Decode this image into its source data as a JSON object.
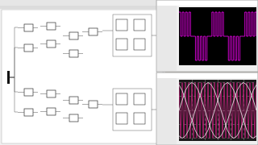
{
  "chart_data": [
    {
      "type": "line",
      "line_style": "step",
      "color": "#ff00ff",
      "grid": false,
      "tick_labels": false,
      "xlim": [
        0,
        47
      ],
      "ylim": [
        -1.2,
        1.2
      ],
      "x": [
        0,
        1,
        2,
        3,
        4,
        5,
        6,
        7,
        8,
        9,
        10,
        11,
        12,
        13,
        14,
        15,
        16,
        17,
        18,
        19,
        20,
        21,
        22,
        23,
        24,
        25,
        26,
        27,
        28,
        29,
        30,
        31,
        32,
        33,
        34,
        35,
        36,
        37,
        38,
        39,
        40,
        41,
        42,
        43,
        44,
        45,
        46,
        47
      ],
      "values": [
        1,
        0,
        1,
        0,
        1,
        0,
        1,
        0,
        0,
        0,
        -1,
        0,
        -1,
        0,
        -1,
        0,
        -1,
        0,
        0,
        0,
        1,
        0,
        1,
        0,
        1,
        0,
        1,
        0,
        0,
        0,
        -1,
        0,
        -1,
        0,
        -1,
        0,
        -1,
        0,
        0,
        0,
        1,
        0,
        1,
        0,
        1,
        0,
        1,
        0
      ]
    },
    {
      "type": "line",
      "grid": true,
      "tick_labels": false,
      "xlim": [
        0,
        24
      ],
      "ylim": [
        -1.1,
        1.1
      ],
      "xticks": [
        0,
        4,
        8,
        12,
        16,
        20,
        24
      ],
      "yticks": [
        -1,
        -0.5,
        0,
        0.5,
        1
      ],
      "series": [
        {
          "color": "#c0207a",
          "x": [
            0,
            0.5,
            1,
            1.5,
            2,
            2.5,
            3,
            3.5,
            4,
            4.5,
            5,
            5.5,
            6,
            6.5,
            7,
            7.5,
            8,
            8.5,
            9,
            9.5,
            10,
            10.5,
            11,
            11.5,
            12,
            12.5,
            13,
            13.5,
            14,
            14.5,
            15,
            15.5,
            16,
            16.5,
            17,
            17.5,
            18,
            18.5,
            19,
            19.5,
            20,
            20.5,
            21,
            21.5,
            22,
            22.5,
            23,
            23.5,
            24
          ],
          "values": [
            1,
            -1,
            1,
            -1,
            1,
            -1,
            1,
            -1,
            1,
            -1,
            1,
            -1,
            1,
            -1,
            1,
            -1,
            1,
            -1,
            1,
            -1,
            1,
            -1,
            1,
            -1,
            1,
            -1,
            1,
            -1,
            1,
            -1,
            1,
            -1,
            1,
            -1,
            1,
            -1,
            1,
            -1,
            1,
            -1,
            1,
            -1,
            1,
            -1,
            1,
            -1,
            1,
            -1,
            1
          ]
        },
        {
          "color": "#f0f0f0",
          "x": [
            0,
            1,
            2,
            3,
            4,
            5,
            6,
            7,
            8,
            9,
            10,
            11,
            12,
            13,
            14,
            15,
            16,
            17,
            18,
            19,
            20,
            21,
            22,
            23,
            24
          ],
          "values": [
            0,
            0.38,
            0.71,
            0.92,
            1,
            0.92,
            0.71,
            0.38,
            0,
            -0.38,
            -0.71,
            -0.92,
            -1,
            -0.92,
            -0.71,
            -0.38,
            0,
            0.38,
            0.71,
            0.92,
            1,
            0.92,
            0.71,
            0.38,
            0
          ]
        },
        {
          "color": "#f0f0f0",
          "x": [
            0,
            1,
            2,
            3,
            4,
            5,
            6,
            7,
            8,
            9,
            10,
            11,
            12,
            13,
            14,
            15,
            16,
            17,
            18,
            19,
            20,
            21,
            22,
            23,
            24
          ],
          "values": [
            -0.92,
            -1,
            -0.92,
            -0.71,
            -0.38,
            0,
            0.38,
            0.71,
            0.92,
            1,
            0.92,
            0.71,
            0.38,
            0,
            -0.38,
            -0.71,
            -0.92,
            -1,
            -0.92,
            -0.71,
            -0.38,
            0,
            0.38,
            0.71,
            0.92
          ]
        },
        {
          "color": "#f0f0f0",
          "x": [
            0,
            1,
            2,
            3,
            4,
            5,
            6,
            7,
            8,
            9,
            10,
            11,
            12,
            13,
            14,
            15,
            16,
            17,
            18,
            19,
            20,
            21,
            22,
            23,
            24
          ],
          "values": [
            0.92,
            0.71,
            0.38,
            0,
            -0.38,
            -0.71,
            -0.92,
            -1,
            -0.92,
            -0.71,
            -0.38,
            0,
            0.38,
            0.71,
            0.92,
            1,
            0.92,
            0.71,
            0.38,
            0,
            -0.38,
            -0.71,
            -0.92,
            -1,
            -0.92
          ]
        }
      ]
    }
  ]
}
